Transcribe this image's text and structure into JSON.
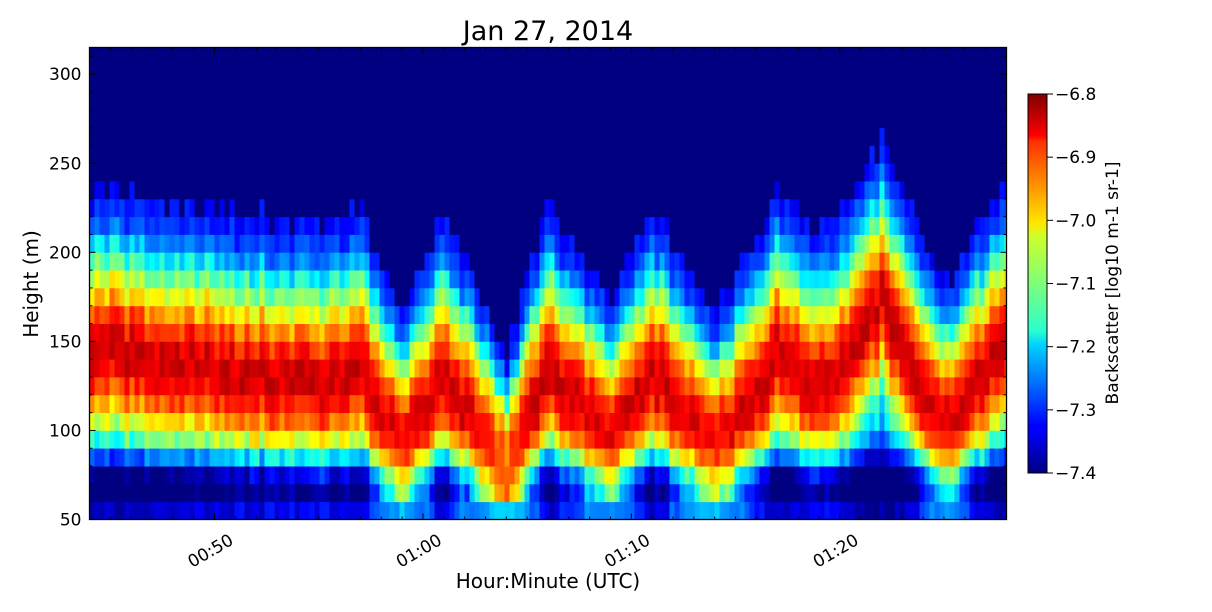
{
  "chart_data": {
    "type": "heatmap",
    "title": "Jan 27, 2014",
    "xlabel": "Hour:Minute (UTC)",
    "ylabel": "Height (m)",
    "x_range": [
      "00:44",
      "01:28"
    ],
    "ylim": [
      50,
      315
    ],
    "x_ticks": [
      "00:50",
      "01:00",
      "01:10",
      "01:20"
    ],
    "y_ticks": [
      50,
      100,
      150,
      200,
      250,
      300
    ],
    "colorbar": {
      "label": "Backscatter [log10 m-1 sr-1]",
      "min": -7.4,
      "max": -6.8,
      "ticks": [
        "-6.8",
        "-6.9",
        "-7.0",
        "-7.1",
        "-7.2",
        "-7.3",
        "-7.4"
      ],
      "colormap": "jet"
    },
    "layer_top_height_m": [
      {
        "time": "00:44",
        "height": 235
      },
      {
        "time": "00:55",
        "height": 215
      },
      {
        "time": "00:57",
        "height": 225
      },
      {
        "time": "00:59",
        "height": 165
      },
      {
        "time": "01:01",
        "height": 225
      },
      {
        "time": "01:04",
        "height": 145
      },
      {
        "time": "01:06",
        "height": 225
      },
      {
        "time": "01:09",
        "height": 175
      },
      {
        "time": "01:11",
        "height": 225
      },
      {
        "time": "01:14",
        "height": 165
      },
      {
        "time": "01:17",
        "height": 235
      },
      {
        "time": "01:19",
        "height": 210
      },
      {
        "time": "01:21",
        "height": 240
      },
      {
        "time": "01:22",
        "height": 265
      },
      {
        "time": "01:25",
        "height": 180
      },
      {
        "time": "01:28",
        "height": 245
      }
    ]
  }
}
